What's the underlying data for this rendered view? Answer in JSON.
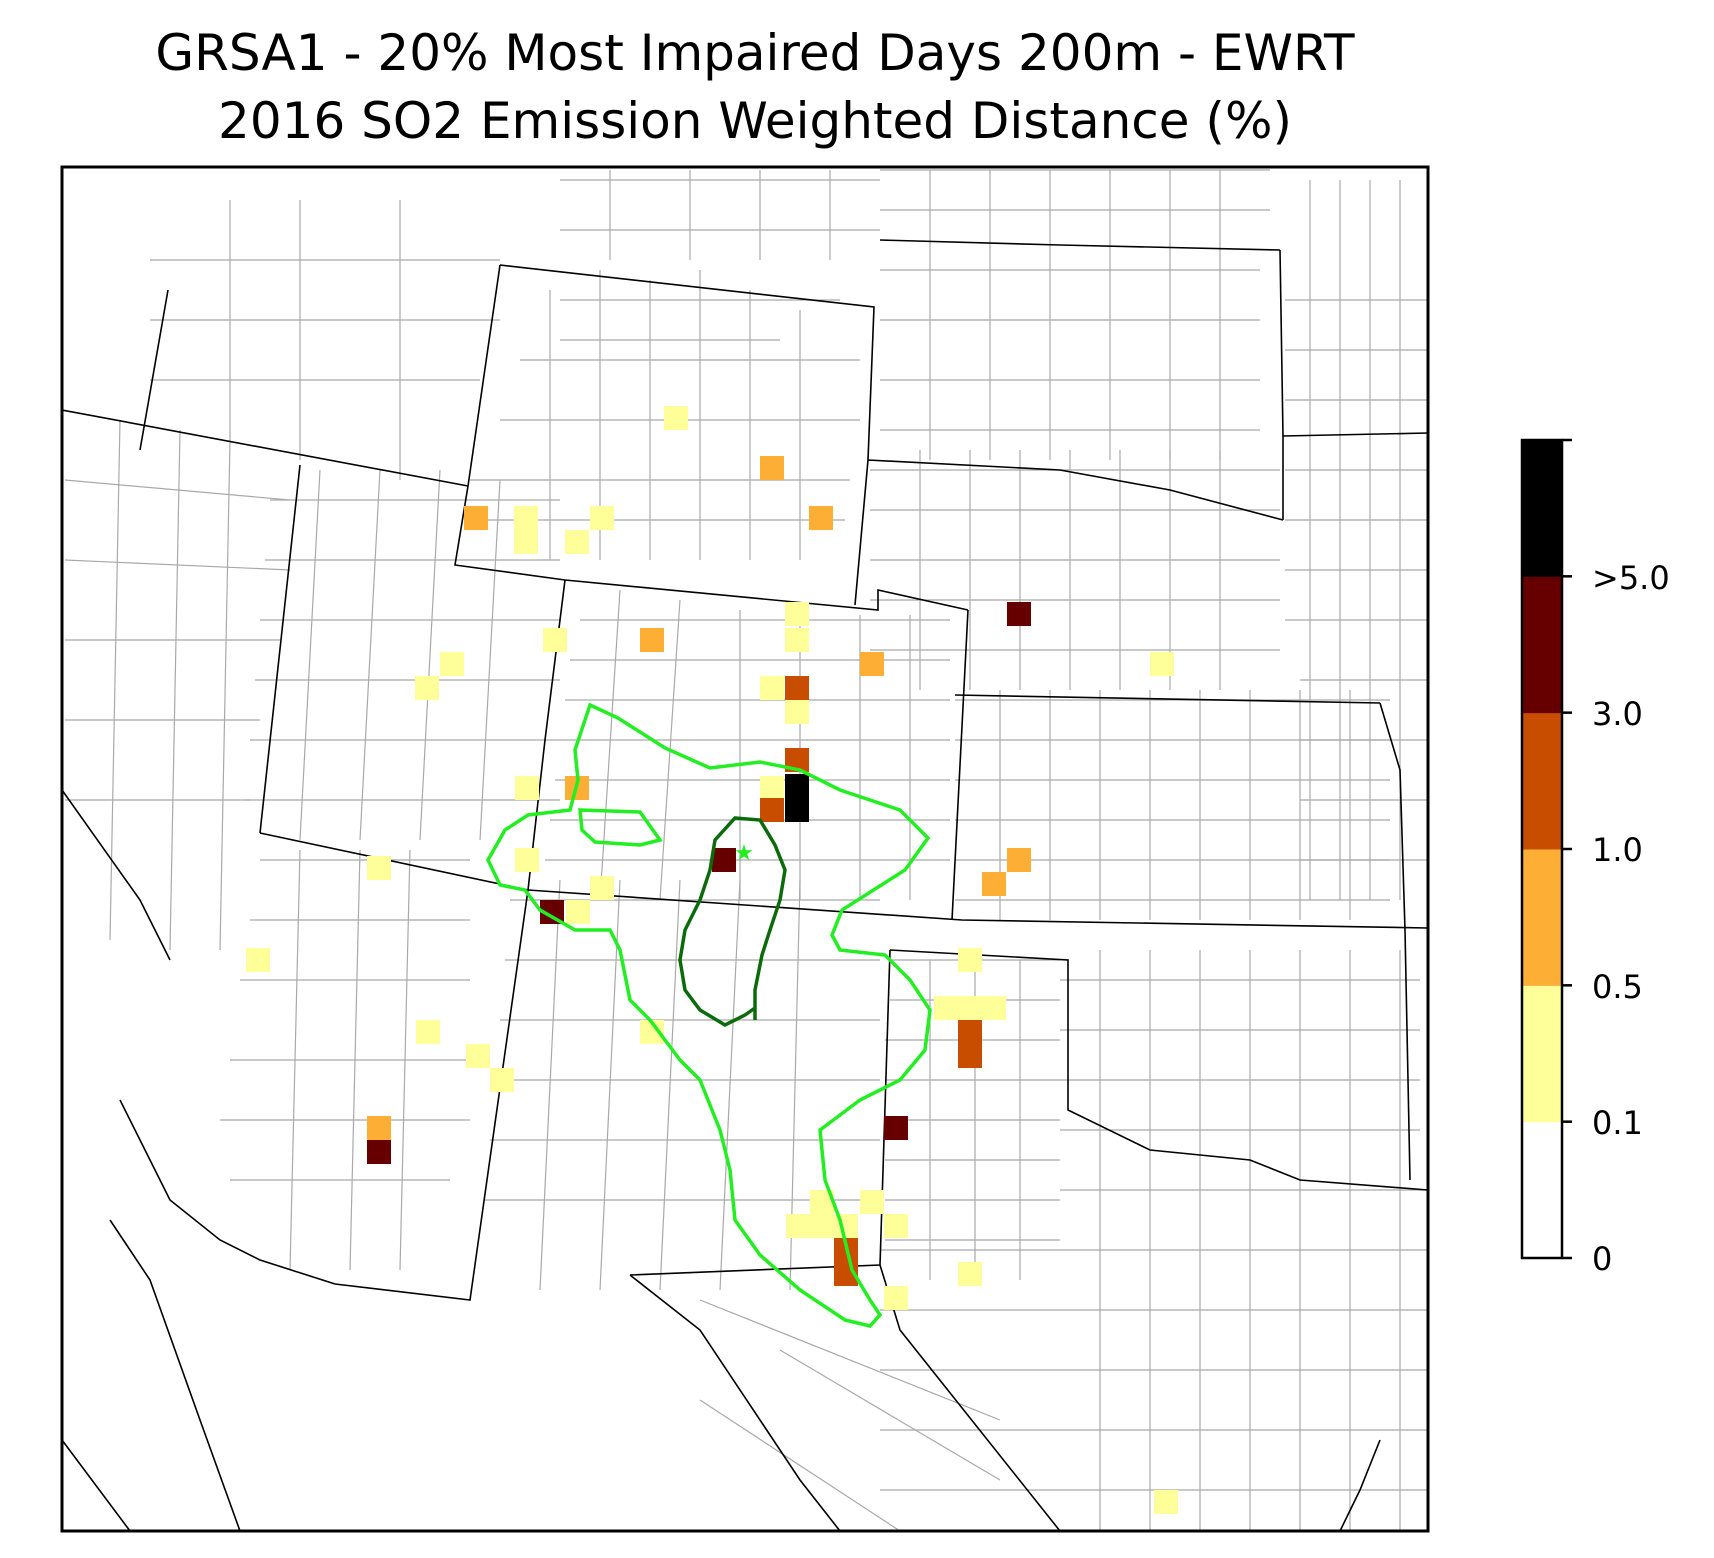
{
  "title": {
    "line1": "GRSA1 - 20% Most Impaired Days 200m - EWRT",
    "line2": "2016 SO2 Emission Weighted Distance (%)"
  },
  "colorbar": {
    "tick_labels": [
      "0",
      "0.1",
      "0.5",
      "1.0",
      "3.0",
      ">5.0"
    ],
    "bins": [
      {
        "range": "0-0.1",
        "color": "#ffffff"
      },
      {
        "range": "0.1-0.5",
        "color": "#ffff99"
      },
      {
        "range": "0.5-1.0",
        "color": "#fdae35"
      },
      {
        "range": "1.0-3.0",
        "color": "#c84d00"
      },
      {
        "range": "3.0-5.0",
        "color": "#660000"
      },
      {
        "range": ">5.0",
        "color": "#000000"
      }
    ]
  },
  "colors": {
    "state_border": "#000000",
    "county_border": "#a9a9a9",
    "outer_contour": "#22ee22",
    "inner_contour": "#0b6b0b",
    "site_marker": "#22ee22"
  },
  "marker": {
    "name": "GRSA1",
    "symbol": "star"
  }
}
